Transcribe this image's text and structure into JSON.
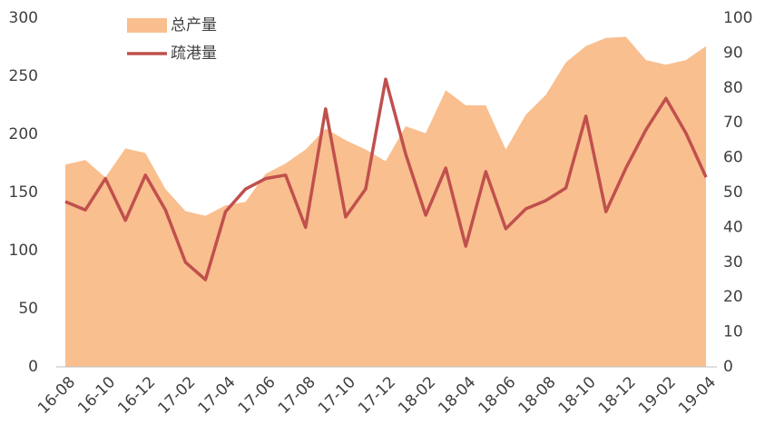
{
  "chart_data": {
    "type": "combo",
    "categories": [
      "16-08",
      null,
      "16-10",
      null,
      "16-12",
      null,
      "17-02",
      null,
      "17-04",
      null,
      "17-06",
      null,
      "17-08",
      null,
      "17-10",
      null,
      "17-12",
      null,
      "18-02",
      null,
      "18-04",
      null,
      "18-06",
      null,
      "18-08",
      null,
      "18-10",
      null,
      "18-12",
      null,
      "19-02",
      null,
      "19-04"
    ],
    "series": [
      {
        "name": "总产量",
        "type": "area",
        "color": "#f9bf8f",
        "axis": "y",
        "values": [
          174,
          178,
          163,
          188,
          184,
          153,
          134,
          130,
          139,
          142,
          166,
          175,
          187,
          205,
          195,
          187,
          177,
          207,
          201,
          238,
          225,
          225,
          187,
          217,
          234,
          262,
          276,
          283,
          284,
          264,
          260,
          264,
          276
        ]
      },
      {
        "name": "疏港量",
        "type": "line",
        "color": "#c0504d",
        "axis": "y2",
        "values": [
          47.4,
          45,
          54,
          42,
          55,
          45,
          30,
          25,
          44.5,
          51,
          54,
          55,
          40,
          74,
          43,
          51,
          82.5,
          61,
          43.5,
          57,
          34.6,
          56,
          39.6,
          45.3,
          47.7,
          51.3,
          71.9,
          44.5,
          57,
          68,
          77,
          67,
          54.4
        ]
      }
    ],
    "ylim": [
      0,
      300
    ],
    "yticks": [
      0,
      50,
      100,
      150,
      200,
      250,
      300
    ],
    "y2lim": [
      0,
      100
    ],
    "y2ticks": [
      0,
      10,
      20,
      30,
      40,
      50,
      60,
      70,
      80,
      90,
      100
    ],
    "grid": false,
    "legend": "top-left"
  }
}
